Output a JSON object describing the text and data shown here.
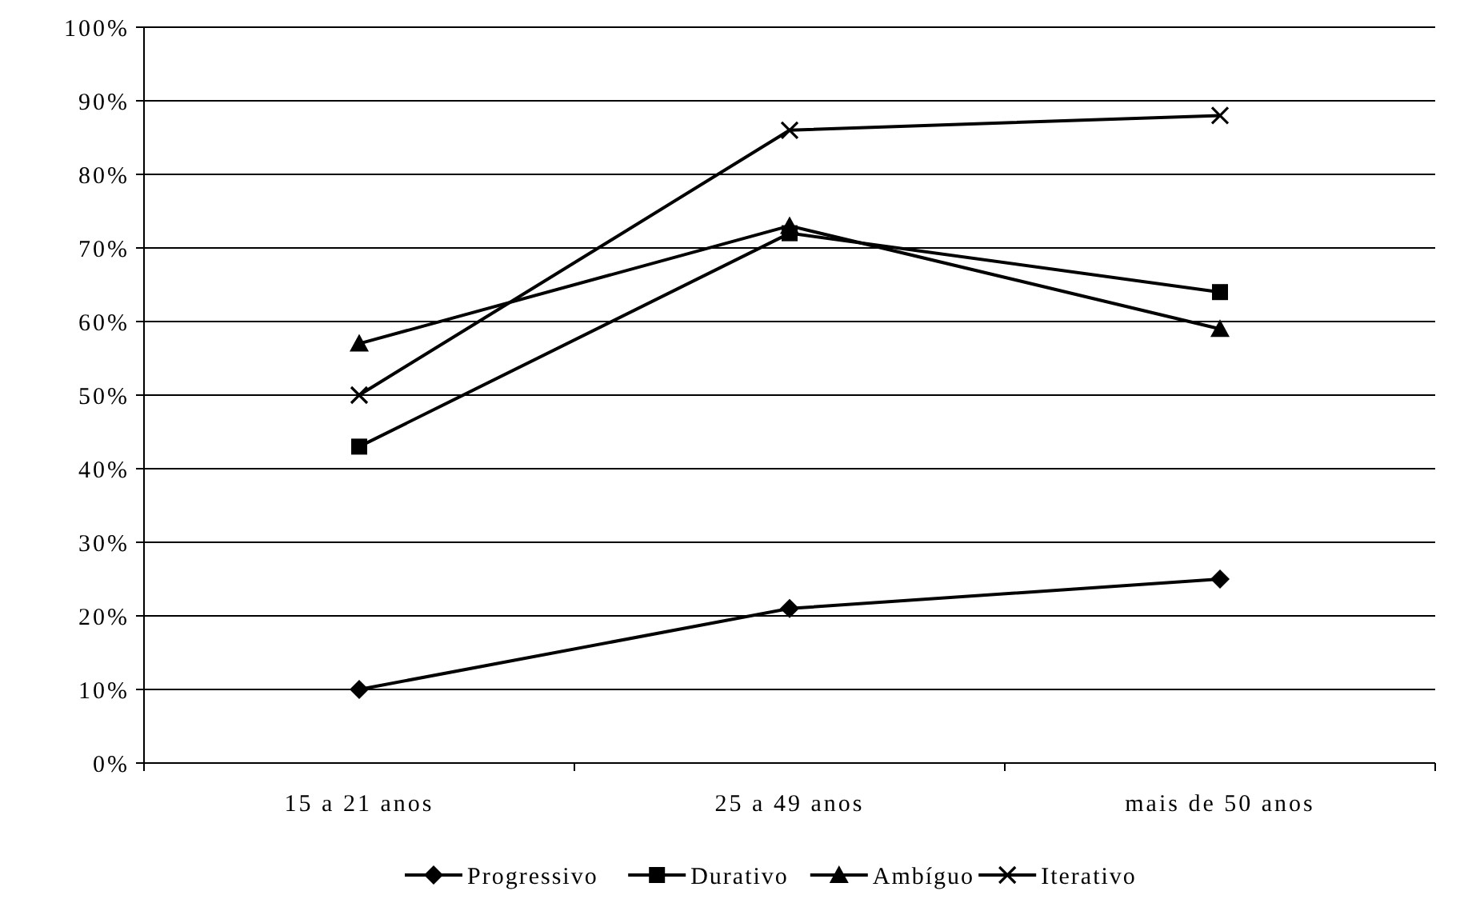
{
  "chart_data": {
    "type": "line",
    "categories": [
      "15 a 21 anos",
      "25 a 49 anos",
      "mais de 50 anos"
    ],
    "series": [
      {
        "name": "Progressivo",
        "color": "#000000",
        "marker": "diamond",
        "values": [
          10,
          21,
          25
        ]
      },
      {
        "name": "Durativo",
        "color": "#000000",
        "marker": "square",
        "values": [
          43,
          72,
          64
        ]
      },
      {
        "name": "Ambíguo",
        "color": "#000000",
        "marker": "triangle",
        "values": [
          57,
          73,
          59
        ]
      },
      {
        "name": "Iterativo",
        "color": "#000000",
        "marker": "cross",
        "values": [
          50,
          86,
          88
        ]
      }
    ],
    "ylim": [
      0,
      100
    ],
    "yticks": [
      {
        "value": 0,
        "label": "0%"
      },
      {
        "value": 10,
        "label": "10%"
      },
      {
        "value": 20,
        "label": "20%"
      },
      {
        "value": 30,
        "label": "30%"
      },
      {
        "value": 40,
        "label": "40%"
      },
      {
        "value": 50,
        "label": "50%"
      },
      {
        "value": 60,
        "label": "60%"
      },
      {
        "value": 70,
        "label": "70%"
      },
      {
        "value": 80,
        "label": "80%"
      },
      {
        "value": 90,
        "label": "90%"
      },
      {
        "value": 100,
        "label": "100%"
      }
    ],
    "grid": "y",
    "legend": "bottom",
    "line_style": "solid"
  }
}
